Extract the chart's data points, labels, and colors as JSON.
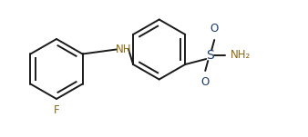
{
  "bg_color": "#ffffff",
  "bond_color": "#1a1a1a",
  "S_color": "#1a3a6e",
  "N_color": "#8B6914",
  "F_color": "#8B6914",
  "O_color": "#1a3a6e",
  "line_width": 1.4,
  "font_size": 8.5,
  "fig_width": 3.38,
  "fig_height": 1.51,
  "xlim": [
    0.0,
    3.38
  ],
  "ylim": [
    0.0,
    1.51
  ]
}
